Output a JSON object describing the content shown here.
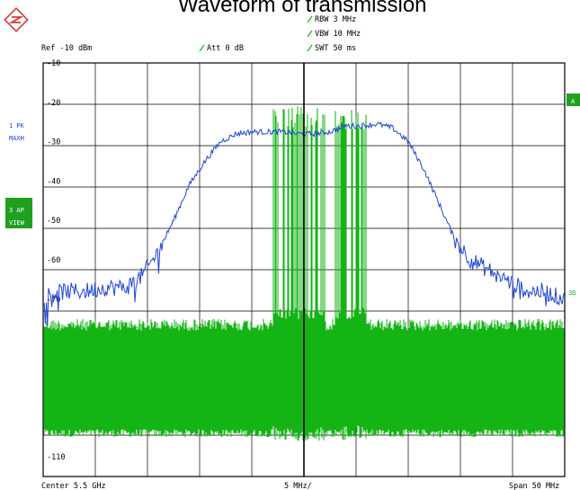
{
  "title": "Waveform of transmission",
  "logo": "rohde-schwarz-logo",
  "settings": {
    "rbw": "RBW 3 MHz",
    "vbw": "VBW 10 MHz",
    "swt": "SWT 50 ms",
    "ref": "Ref -10 dBm",
    "att": "Att  0 dB"
  },
  "side": {
    "trace1_line1": "1 PK",
    "trace1_line2": "MAXH",
    "trace3_line1": "3 AP",
    "trace3_line2": "VIEW",
    "marker_a": "A",
    "marker_3db": "3D"
  },
  "footer": {
    "center": "Center 5.5 GHz",
    "div": "5 MHz/",
    "span": "Span 50 MHz"
  },
  "colors": {
    "trace_blue": "#1f44d8",
    "trace_green": "#14b414",
    "badge_green": "#1fa01f",
    "grid": "#000000"
  },
  "chart_data": {
    "type": "line",
    "title": "Waveform of transmission",
    "xlabel": "5 MHz/",
    "ylabel": "dBm",
    "xlim": [
      5475,
      5525
    ],
    "ylim": [
      -115,
      -10
    ],
    "y_ticks": [
      -10,
      -20,
      -30,
      -40,
      -50,
      -60,
      -70,
      -110
    ],
    "grid": true,
    "series": [
      {
        "name": "1 PK MAXH",
        "color": "#1f44d8",
        "points": [
          [
            5475,
            -69
          ],
          [
            5477,
            -68
          ],
          [
            5479,
            -68
          ],
          [
            5481,
            -67
          ],
          [
            5483,
            -67
          ],
          [
            5484.5,
            -64
          ],
          [
            5486,
            -58
          ],
          [
            5487.5,
            -50
          ],
          [
            5489,
            -41
          ],
          [
            5490.5,
            -35
          ],
          [
            5492,
            -30
          ],
          [
            5493.5,
            -28
          ],
          [
            5495,
            -27.5
          ],
          [
            5496.5,
            -27.5
          ],
          [
            5498,
            -27.5
          ],
          [
            5499.5,
            -28
          ],
          [
            5501,
            -28
          ],
          [
            5502.5,
            -27.5
          ],
          [
            5504,
            -26
          ],
          [
            5505.5,
            -26
          ],
          [
            5507,
            -25.5
          ],
          [
            5508.5,
            -26.5
          ],
          [
            5510,
            -30
          ],
          [
            5511.5,
            -37
          ],
          [
            5513,
            -46
          ],
          [
            5514.5,
            -55
          ],
          [
            5516,
            -60
          ],
          [
            5518,
            -63
          ],
          [
            5520,
            -66
          ],
          [
            5521.5,
            -68
          ],
          [
            5523,
            -68
          ],
          [
            5525,
            -70
          ]
        ]
      },
      {
        "name": "3 AP VIEW",
        "color": "#14b414",
        "noise_floor": [
          -75,
          -103
        ],
        "burst_regions": [
          [
            5497,
            5502
          ],
          [
            5503,
            5506
          ]
        ],
        "burst_range": [
          -27,
          -102
        ]
      }
    ]
  }
}
